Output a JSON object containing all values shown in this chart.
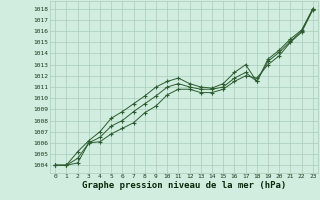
{
  "bg_color": "#d0ede0",
  "grid_color": "#a8ccb8",
  "line_color": "#2d5c30",
  "xlabel": "Graphe pression niveau de la mer (hPa)",
  "xlabel_fontsize": 6.5,
  "yticks": [
    1004,
    1005,
    1006,
    1007,
    1008,
    1009,
    1010,
    1011,
    1012,
    1013,
    1014,
    1015,
    1016,
    1017,
    1018
  ],
  "ylim": [
    1003.3,
    1018.7
  ],
  "xlim": [
    -0.5,
    23.5
  ],
  "xticks": [
    0,
    1,
    2,
    3,
    4,
    5,
    6,
    7,
    8,
    9,
    10,
    11,
    12,
    13,
    14,
    15,
    16,
    17,
    18,
    19,
    20,
    21,
    22,
    23
  ],
  "series1": [
    1004.0,
    1004.0,
    1004.2,
    1006.0,
    1006.1,
    1006.8,
    1007.3,
    1007.8,
    1008.7,
    1009.3,
    1010.3,
    1010.8,
    1010.8,
    1010.5,
    1010.5,
    1010.8,
    1011.5,
    1012.0,
    1011.8,
    1013.0,
    1013.8,
    1015.0,
    1015.9,
    1017.9
  ],
  "series2": [
    1004.0,
    1004.0,
    1004.6,
    1006.0,
    1006.5,
    1007.5,
    1008.0,
    1008.8,
    1009.5,
    1010.2,
    1011.0,
    1011.3,
    1011.0,
    1010.8,
    1010.8,
    1011.0,
    1011.8,
    1012.3,
    1011.5,
    1013.3,
    1014.1,
    1015.1,
    1016.0,
    1018.0
  ],
  "series3": [
    1004.0,
    1004.0,
    1005.2,
    1006.2,
    1007.0,
    1008.2,
    1008.8,
    1009.5,
    1010.2,
    1011.0,
    1011.5,
    1011.8,
    1011.3,
    1011.0,
    1010.9,
    1011.3,
    1012.3,
    1013.0,
    1011.5,
    1013.5,
    1014.3,
    1015.3,
    1016.1,
    1018.0
  ],
  "marker": "+",
  "marker_size": 3.5,
  "linewidth": 0.7,
  "tick_fontsize": 4.5
}
